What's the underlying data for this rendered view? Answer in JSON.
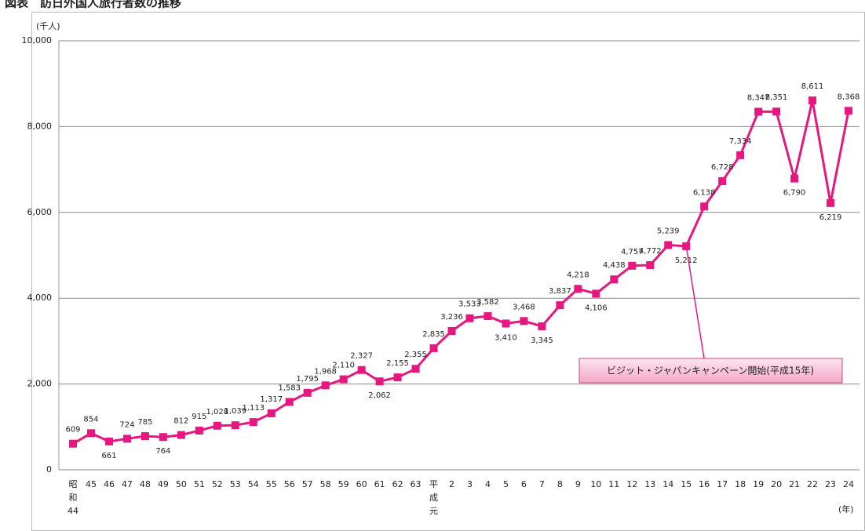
{
  "chart_data": {
    "type": "line",
    "title": "図表　訪日外国人旅行者数の推移",
    "y_label": "(千人)",
    "x_label": "(年)",
    "annotation": "ビジット・ジャパンキャンペーン開始(平成15年)",
    "categories": [
      "昭和44",
      "45",
      "46",
      "47",
      "48",
      "49",
      "50",
      "51",
      "52",
      "53",
      "54",
      "55",
      "56",
      "57",
      "58",
      "59",
      "60",
      "61",
      "62",
      "63",
      "平成元",
      "2",
      "3",
      "4",
      "5",
      "6",
      "7",
      "8",
      "9",
      "10",
      "11",
      "12",
      "13",
      "14",
      "15",
      "16",
      "17",
      "18",
      "19",
      "20",
      "21",
      "22",
      "23",
      "24"
    ],
    "series": [
      {
        "color": "#e8177f",
        "values": [
          609,
          854,
          661,
          724,
          785,
          764,
          812,
          915,
          1028,
          1039,
          1113,
          1317,
          1583,
          1795,
          1968,
          2110,
          2327,
          2062,
          2155,
          2355,
          2835,
          3236,
          3533,
          3582,
          3410,
          3468,
          3345,
          3837,
          4218,
          4106,
          4438,
          4757,
          4772,
          5239,
          5212,
          6138,
          6728,
          7334,
          8347,
          8351,
          6790,
          8611,
          6219,
          8368
        ],
        "value_labels": [
          "609",
          "854",
          "661",
          "724",
          "785",
          "764",
          "812",
          "915",
          "1,028",
          "1,039",
          "1,113",
          "1,317",
          "1,583",
          "1,795",
          "1,968",
          "2,110",
          "2,327",
          "2,062",
          "2,155",
          "2,355",
          "2,835",
          "3,236",
          "3,533",
          "3,582",
          "3,410",
          "3,468",
          "3,345",
          "3,837",
          "4,218",
          "4,106",
          "4,438",
          "4,757",
          "4,772",
          "5,239",
          "5,212",
          "6,138",
          "6,728",
          "7,334",
          "8,347",
          "8,351",
          "6,790",
          "8,611",
          "6,219",
          "8,368"
        ]
      }
    ],
    "ylim": [
      0,
      10000
    ],
    "yticks": [
      0,
      {
        "value": 2000,
        "label": "2,000"
      },
      {
        "value": 4000,
        "label": "4,000"
      },
      {
        "value": 6000,
        "label": "6,000"
      },
      {
        "value": 8000,
        "label": "8,000"
      },
      {
        "value": 10000,
        "label": "10,000"
      }
    ],
    "grid": true
  }
}
